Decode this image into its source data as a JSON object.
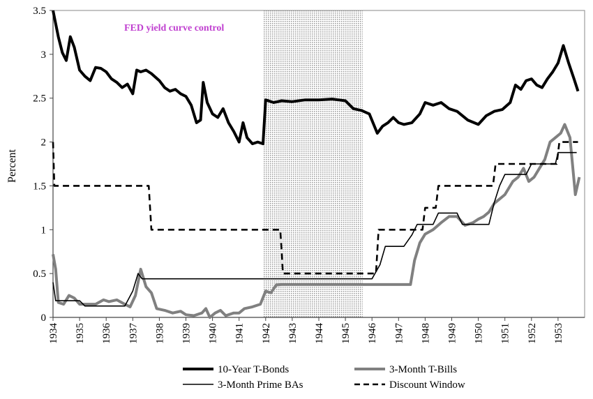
{
  "chart_data": {
    "type": "line",
    "title": "",
    "xlabel": "",
    "ylabel": "Percent",
    "xlim": [
      1934,
      1954
    ],
    "ylim": [
      0,
      3.5
    ],
    "y_ticks": [
      "0",
      "0.5",
      "1",
      "1.5",
      "2",
      "2.5",
      "3",
      "3.5"
    ],
    "x_ticks": [
      "1934",
      "1935",
      "1936",
      "1937",
      "1938",
      "1939",
      "1940",
      "1941",
      "1942",
      "1943",
      "1944",
      "1945",
      "1946",
      "1947",
      "1948",
      "1949",
      "1950",
      "1951",
      "1952",
      "1953"
    ],
    "grid": false,
    "annotation": {
      "text": "FED yield curve control",
      "color": "#c040d0"
    },
    "shaded_region": {
      "x_start": 1941.9,
      "x_end": 1945.65,
      "fill": "dotted-gray"
    },
    "legend_position": "bottom",
    "series": [
      {
        "name": "10-Year T-Bonds",
        "color": "#000000",
        "style": "thick",
        "points": [
          [
            1934.0,
            3.5
          ],
          [
            1934.1,
            3.35
          ],
          [
            1934.2,
            3.2
          ],
          [
            1934.35,
            3.02
          ],
          [
            1934.5,
            2.93
          ],
          [
            1934.65,
            3.2
          ],
          [
            1934.8,
            3.08
          ],
          [
            1935.0,
            2.82
          ],
          [
            1935.2,
            2.75
          ],
          [
            1935.4,
            2.7
          ],
          [
            1935.6,
            2.85
          ],
          [
            1935.8,
            2.84
          ],
          [
            1936.0,
            2.8
          ],
          [
            1936.2,
            2.72
          ],
          [
            1936.4,
            2.68
          ],
          [
            1936.6,
            2.62
          ],
          [
            1936.8,
            2.66
          ],
          [
            1937.0,
            2.55
          ],
          [
            1937.15,
            2.82
          ],
          [
            1937.3,
            2.8
          ],
          [
            1937.5,
            2.82
          ],
          [
            1937.7,
            2.78
          ],
          [
            1938.0,
            2.7
          ],
          [
            1938.2,
            2.62
          ],
          [
            1938.4,
            2.58
          ],
          [
            1938.6,
            2.6
          ],
          [
            1938.8,
            2.55
          ],
          [
            1939.0,
            2.52
          ],
          [
            1939.2,
            2.42
          ],
          [
            1939.4,
            2.22
          ],
          [
            1939.55,
            2.25
          ],
          [
            1939.65,
            2.68
          ],
          [
            1939.8,
            2.45
          ],
          [
            1940.0,
            2.32
          ],
          [
            1940.2,
            2.28
          ],
          [
            1940.4,
            2.38
          ],
          [
            1940.6,
            2.22
          ],
          [
            1940.8,
            2.12
          ],
          [
            1941.0,
            2.0
          ],
          [
            1941.15,
            2.22
          ],
          [
            1941.3,
            2.05
          ],
          [
            1941.5,
            1.98
          ],
          [
            1941.7,
            2.0
          ],
          [
            1941.9,
            1.98
          ],
          [
            1942.0,
            2.48
          ],
          [
            1942.3,
            2.45
          ],
          [
            1942.6,
            2.47
          ],
          [
            1943.0,
            2.46
          ],
          [
            1943.5,
            2.48
          ],
          [
            1944.0,
            2.48
          ],
          [
            1944.5,
            2.49
          ],
          [
            1945.0,
            2.47
          ],
          [
            1945.3,
            2.38
          ],
          [
            1945.6,
            2.36
          ],
          [
            1945.9,
            2.32
          ],
          [
            1946.2,
            2.1
          ],
          [
            1946.4,
            2.18
          ],
          [
            1946.6,
            2.22
          ],
          [
            1946.8,
            2.28
          ],
          [
            1947.0,
            2.22
          ],
          [
            1947.2,
            2.2
          ],
          [
            1947.5,
            2.22
          ],
          [
            1947.8,
            2.32
          ],
          [
            1948.0,
            2.45
          ],
          [
            1948.3,
            2.42
          ],
          [
            1948.6,
            2.45
          ],
          [
            1948.9,
            2.38
          ],
          [
            1949.2,
            2.35
          ],
          [
            1949.6,
            2.25
          ],
          [
            1950.0,
            2.2
          ],
          [
            1950.3,
            2.3
          ],
          [
            1950.6,
            2.35
          ],
          [
            1950.9,
            2.37
          ],
          [
            1951.2,
            2.45
          ],
          [
            1951.4,
            2.65
          ],
          [
            1951.6,
            2.6
          ],
          [
            1951.8,
            2.7
          ],
          [
            1952.0,
            2.72
          ],
          [
            1952.2,
            2.65
          ],
          [
            1952.4,
            2.62
          ],
          [
            1952.6,
            2.72
          ],
          [
            1952.8,
            2.8
          ],
          [
            1953.0,
            2.9
          ],
          [
            1953.2,
            3.1
          ],
          [
            1953.4,
            2.9
          ],
          [
            1953.6,
            2.72
          ],
          [
            1953.75,
            2.58
          ]
        ]
      },
      {
        "name": "3-Month T-Bills",
        "color": "#808080",
        "style": "thick",
        "points": [
          [
            1934.0,
            0.72
          ],
          [
            1934.1,
            0.55
          ],
          [
            1934.2,
            0.17
          ],
          [
            1934.4,
            0.15
          ],
          [
            1934.6,
            0.25
          ],
          [
            1934.8,
            0.22
          ],
          [
            1935.0,
            0.15
          ],
          [
            1935.3,
            0.15
          ],
          [
            1935.6,
            0.15
          ],
          [
            1935.9,
            0.2
          ],
          [
            1936.1,
            0.18
          ],
          [
            1936.4,
            0.2
          ],
          [
            1936.7,
            0.15
          ],
          [
            1936.9,
            0.12
          ],
          [
            1937.1,
            0.25
          ],
          [
            1937.3,
            0.55
          ],
          [
            1937.5,
            0.35
          ],
          [
            1937.7,
            0.28
          ],
          [
            1937.9,
            0.1
          ],
          [
            1938.2,
            0.08
          ],
          [
            1938.5,
            0.05
          ],
          [
            1938.8,
            0.07
          ],
          [
            1939.0,
            0.03
          ],
          [
            1939.3,
            0.02
          ],
          [
            1939.6,
            0.05
          ],
          [
            1939.75,
            0.1
          ],
          [
            1939.9,
            0.0
          ],
          [
            1940.1,
            0.05
          ],
          [
            1940.3,
            0.08
          ],
          [
            1940.5,
            0.02
          ],
          [
            1940.8,
            0.05
          ],
          [
            1941.0,
            0.05
          ],
          [
            1941.2,
            0.1
          ],
          [
            1941.5,
            0.12
          ],
          [
            1941.8,
            0.15
          ],
          [
            1942.0,
            0.3
          ],
          [
            1942.2,
            0.28
          ],
          [
            1942.4,
            0.37
          ],
          [
            1942.6,
            0.375
          ],
          [
            1943.0,
            0.375
          ],
          [
            1945.0,
            0.375
          ],
          [
            1946.0,
            0.375
          ],
          [
            1947.0,
            0.375
          ],
          [
            1947.45,
            0.375
          ],
          [
            1947.6,
            0.65
          ],
          [
            1947.8,
            0.85
          ],
          [
            1948.0,
            0.95
          ],
          [
            1948.3,
            1.0
          ],
          [
            1948.6,
            1.08
          ],
          [
            1948.9,
            1.15
          ],
          [
            1949.2,
            1.15
          ],
          [
            1949.5,
            1.05
          ],
          [
            1949.8,
            1.08
          ],
          [
            1950.0,
            1.12
          ],
          [
            1950.2,
            1.15
          ],
          [
            1950.4,
            1.2
          ],
          [
            1950.6,
            1.3
          ],
          [
            1950.8,
            1.35
          ],
          [
            1951.0,
            1.4
          ],
          [
            1951.3,
            1.55
          ],
          [
            1951.5,
            1.6
          ],
          [
            1951.7,
            1.7
          ],
          [
            1951.9,
            1.55
          ],
          [
            1952.1,
            1.6
          ],
          [
            1952.3,
            1.7
          ],
          [
            1952.5,
            1.8
          ],
          [
            1952.7,
            2.0
          ],
          [
            1952.9,
            2.05
          ],
          [
            1953.1,
            2.1
          ],
          [
            1953.25,
            2.2
          ],
          [
            1953.45,
            2.05
          ],
          [
            1953.65,
            1.4
          ],
          [
            1953.8,
            1.6
          ]
        ]
      },
      {
        "name": "3-Month Prime BAs",
        "color": "#000000",
        "style": "thin",
        "points": [
          [
            1934.0,
            0.4
          ],
          [
            1934.1,
            0.19
          ],
          [
            1935.0,
            0.19
          ],
          [
            1935.2,
            0.13
          ],
          [
            1936.7,
            0.13
          ],
          [
            1937.0,
            0.3
          ],
          [
            1937.2,
            0.5
          ],
          [
            1937.35,
            0.44
          ],
          [
            1942.0,
            0.44
          ],
          [
            1946.0,
            0.44
          ],
          [
            1946.3,
            0.6
          ],
          [
            1946.5,
            0.81
          ],
          [
            1947.2,
            0.81
          ],
          [
            1947.5,
            0.94
          ],
          [
            1947.7,
            1.06
          ],
          [
            1948.3,
            1.06
          ],
          [
            1948.5,
            1.19
          ],
          [
            1949.2,
            1.19
          ],
          [
            1949.4,
            1.06
          ],
          [
            1950.4,
            1.06
          ],
          [
            1950.6,
            1.31
          ],
          [
            1950.8,
            1.5
          ],
          [
            1951.0,
            1.63
          ],
          [
            1951.8,
            1.63
          ],
          [
            1952.0,
            1.75
          ],
          [
            1952.9,
            1.75
          ],
          [
            1953.0,
            1.88
          ],
          [
            1953.7,
            1.88
          ]
        ]
      },
      {
        "name": "Discount Window",
        "color": "#000000",
        "style": "dashed",
        "points": [
          [
            1934.0,
            2.0
          ],
          [
            1934.05,
            1.5
          ],
          [
            1937.6,
            1.5
          ],
          [
            1937.7,
            1.0
          ],
          [
            1942.55,
            1.0
          ],
          [
            1942.65,
            0.5
          ],
          [
            1946.15,
            0.5
          ],
          [
            1946.25,
            1.0
          ],
          [
            1947.9,
            1.0
          ],
          [
            1948.0,
            1.25
          ],
          [
            1948.4,
            1.25
          ],
          [
            1948.5,
            1.5
          ],
          [
            1950.55,
            1.5
          ],
          [
            1950.65,
            1.75
          ],
          [
            1952.95,
            1.75
          ],
          [
            1953.05,
            2.0
          ],
          [
            1953.75,
            2.0
          ]
        ]
      }
    ]
  }
}
